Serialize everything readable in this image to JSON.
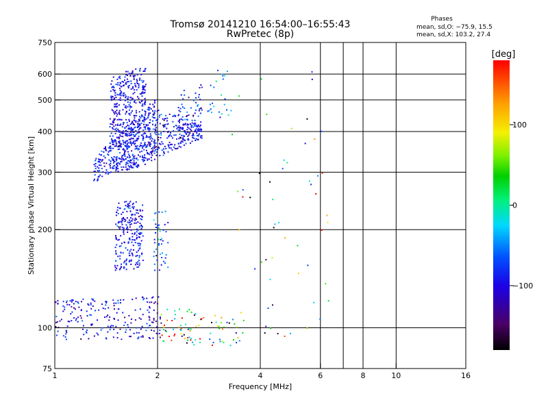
{
  "chart_data": {
    "type": "scatter",
    "title": "Tromsø 20141210 16:54:00–16:55:43",
    "subtitle": "RwPretec (8p)",
    "xlabel": "Frequency [MHz]",
    "ylabel": "Stationary phase Virtual Height [km]",
    "x_scale": "log",
    "y_scale": "log",
    "xlim": [
      1,
      16
    ],
    "ylim": [
      75,
      750
    ],
    "x_ticks": [
      1,
      2,
      4,
      6,
      8,
      10,
      16
    ],
    "x_tick_labels": [
      "1",
      "2",
      "4",
      "6",
      "8",
      "10",
      "16"
    ],
    "x_gridlines": [
      2,
      4,
      6,
      7,
      8,
      10
    ],
    "y_ticks": [
      75,
      100,
      200,
      300,
      400,
      500,
      600,
      750
    ],
    "y_tick_labels": [
      "75",
      "100",
      "200",
      "300",
      "400",
      "500",
      "600",
      "750"
    ],
    "y_gridlines": [
      100,
      200,
      300,
      400,
      500,
      600
    ],
    "grid": true,
    "phase_stats": {
      "heading": "Phases",
      "line_o": "mean, sd,O: −75.9, 15.5",
      "line_x": "mean, sd,X: 103.2, 27.4"
    },
    "colorbar": {
      "label": "[deg]",
      "range": [
        -180,
        180
      ],
      "ticks": [
        100,
        0,
        -100
      ],
      "tick_labels": [
        "100",
        "0",
        "−100"
      ]
    },
    "clusters": [
      {
        "kind": "band",
        "fmin": 1.45,
        "fmax": 1.85,
        "hmin_start": 300,
        "hmin_end": 310,
        "hmax_start": 590,
        "hmax_end": 640,
        "n": 520,
        "phase_mean": -95,
        "phase_sd": 18
      },
      {
        "kind": "band",
        "fmin": 1.3,
        "fmax": 2.0,
        "hmin_start": 280,
        "hmin_end": 330,
        "hmax_start": 330,
        "hmax_end": 520,
        "n": 260,
        "phase_mean": -90,
        "phase_sd": 22
      },
      {
        "kind": "band",
        "fmin": 1.85,
        "fmax": 2.7,
        "hmin_start": 320,
        "hmin_end": 380,
        "hmax_start": 480,
        "hmax_end": 420,
        "n": 260,
        "phase_mean": -95,
        "phase_sd": 25
      },
      {
        "kind": "band",
        "fmin": 2.3,
        "fmax": 2.7,
        "hmin_start": 380,
        "hmin_end": 380,
        "hmax_start": 530,
        "hmax_end": 560,
        "n": 70,
        "phase_mean": -90,
        "phase_sd": 25
      },
      {
        "kind": "band",
        "fmin": 1.5,
        "fmax": 1.82,
        "hmin_start": 150,
        "hmin_end": 152,
        "hmax_start": 240,
        "hmax_end": 250,
        "n": 230,
        "phase_mean": -95,
        "phase_sd": 20
      },
      {
        "kind": "band",
        "fmin": 1.95,
        "fmax": 2.15,
        "hmin_start": 150,
        "hmin_end": 150,
        "hmax_start": 230,
        "hmax_end": 230,
        "n": 45,
        "phase_mean": -70,
        "phase_sd": 30
      },
      {
        "kind": "band",
        "fmin": 1.0,
        "fmax": 2.05,
        "hmin_start": 92,
        "hmin_end": 92,
        "hmax_start": 122,
        "hmax_end": 125,
        "n": 220,
        "phase_mean": -100,
        "phase_sd": 25
      },
      {
        "kind": "band",
        "fmin": 2.05,
        "fmax": 3.6,
        "hmin_start": 88,
        "hmin_end": 88,
        "hmax_start": 115,
        "hmax_end": 112,
        "n": 90,
        "phase_mean": 40,
        "phase_sd": 120
      },
      {
        "kind": "band",
        "fmin": 2.8,
        "fmax": 3.3,
        "hmin_start": 430,
        "hmin_end": 450,
        "hmax_start": 620,
        "hmax_end": 620,
        "n": 25,
        "phase_mean": -40,
        "phase_sd": 40
      },
      {
        "kind": "band",
        "fmin": 3.2,
        "fmax": 6.4,
        "hmin_start": 90,
        "hmin_end": 90,
        "hmax_start": 620,
        "hmax_end": 620,
        "n": 55,
        "phase_mean": -10,
        "phase_sd": 130
      }
    ]
  }
}
